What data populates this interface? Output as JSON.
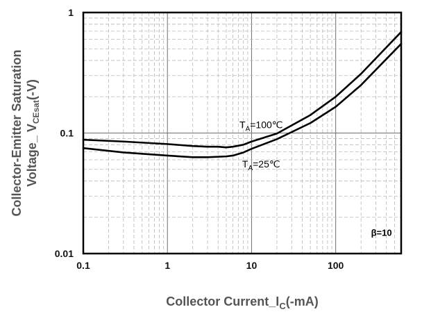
{
  "chart_data": {
    "type": "line",
    "title": "",
    "xlabel": {
      "main": "Collector Current_I",
      "sub": "C",
      "tail": "(-mA)"
    },
    "ylabel": {
      "line1": "Collector-Emitter Saturation",
      "line2_main": "Voltage_ V",
      "line2_sub": "CEsat",
      "line2_tail": "(-V)"
    },
    "x_scale": "log",
    "y_scale": "log",
    "xlim": [
      0.1,
      600
    ],
    "ylim": [
      0.01,
      1
    ],
    "x_ticks": [
      {
        "value": 0.1,
        "label": "0.1"
      },
      {
        "value": 1,
        "label": "1"
      },
      {
        "value": 10,
        "label": "10"
      },
      {
        "value": 100,
        "label": "100"
      }
    ],
    "y_ticks": [
      {
        "value": 0.01,
        "label": "0.01"
      },
      {
        "value": 0.1,
        "label": "0.1"
      },
      {
        "value": 1,
        "label": "1"
      }
    ],
    "grid": true,
    "series": [
      {
        "x": [
          0.1,
          0.3,
          1,
          2,
          3,
          4,
          5,
          6,
          8,
          10,
          20,
          50,
          100,
          200,
          600
        ],
        "y": [
          0.088,
          0.085,
          0.081,
          0.078,
          0.077,
          0.077,
          0.076,
          0.077,
          0.08,
          0.085,
          0.099,
          0.141,
          0.2,
          0.31,
          0.69
        ]
      },
      {
        "x": [
          0.1,
          0.3,
          1,
          2,
          3,
          5,
          6,
          8,
          10,
          20,
          50,
          100,
          200,
          600
        ],
        "y": [
          0.075,
          0.069,
          0.065,
          0.063,
          0.063,
          0.064,
          0.065,
          0.069,
          0.074,
          0.089,
          0.121,
          0.165,
          0.25,
          0.55
        ]
      }
    ],
    "annotations": [
      {
        "pre": "T",
        "sub": "A",
        "post": "=100℃",
        "x": 13,
        "y": 0.11
      },
      {
        "pre": "T",
        "sub": "A",
        "post": "=25℃",
        "x": 13,
        "y": 0.052
      },
      {
        "text": "β=10",
        "x": 350,
        "y": 0.014
      }
    ]
  }
}
